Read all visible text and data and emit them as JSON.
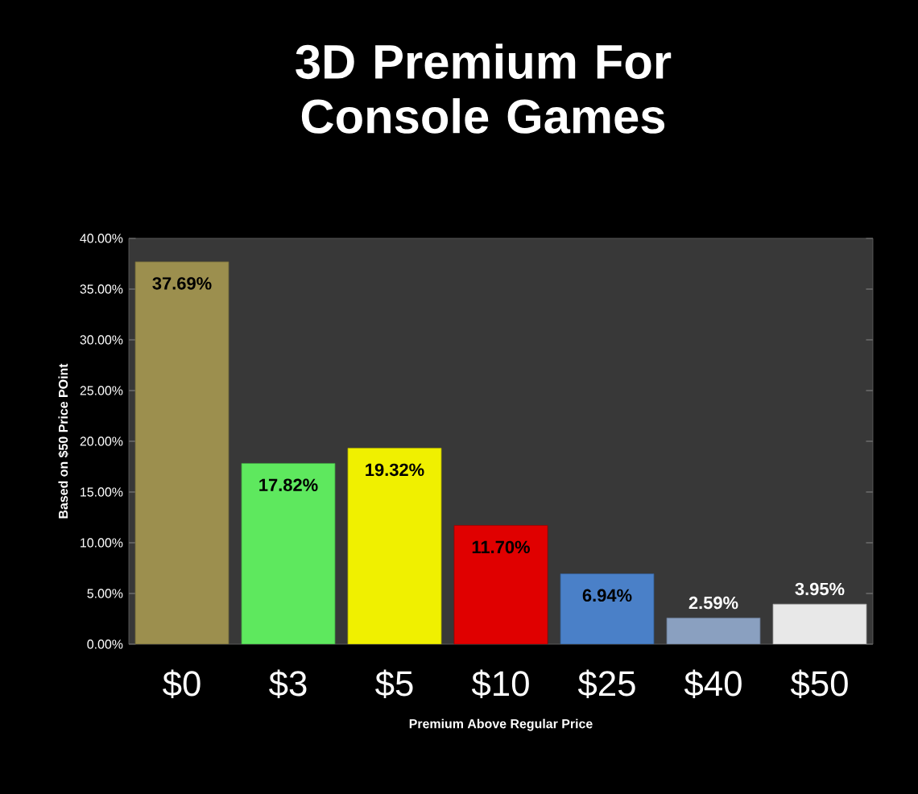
{
  "chart_data": {
    "type": "bar",
    "title": "3D Premium For Console Games",
    "xlabel": "Premium Above Regular Price",
    "ylabel": "Based on $50 Price POint",
    "categories": [
      "$0",
      "$3",
      "$5",
      "$10",
      "$25",
      "$40",
      "$50"
    ],
    "values": [
      37.69,
      17.82,
      19.32,
      11.7,
      6.94,
      2.59,
      3.95
    ],
    "colors": [
      "#9c8f4e",
      "#5ee85e",
      "#f0f000",
      "#e00000",
      "#4a80c8",
      "#8aa0c0",
      "#e8e8e8"
    ],
    "value_labels": [
      "37.69%",
      "17.82%",
      "19.32%",
      "11.70%",
      "6.94%",
      "2.59%",
      "3.95%"
    ],
    "ylim": [
      0,
      40
    ],
    "yticks": [
      {
        "value": 0,
        "label": "0.00%"
      },
      {
        "value": 5,
        "label": "5.00%"
      },
      {
        "value": 10,
        "label": "10.00%"
      },
      {
        "value": 15,
        "label": "15.00%"
      },
      {
        "value": 20,
        "label": "20.00%"
      },
      {
        "value": 25,
        "label": "25.00%"
      },
      {
        "value": 30,
        "label": "30.00%"
      },
      {
        "value": 35,
        "label": "35.00%"
      },
      {
        "value": 40,
        "label": "40.00%"
      }
    ],
    "grid": false
  }
}
